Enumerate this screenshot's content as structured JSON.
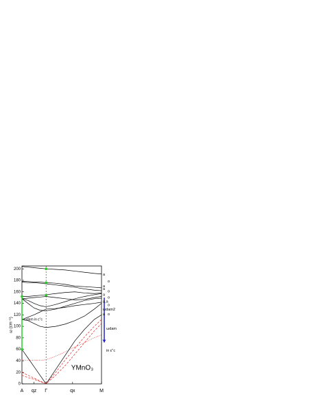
{
  "chart_data": {
    "type": "line",
    "title": "YMnO₃",
    "ylabel": "ω (cm⁻¹)",
    "ylim": [
      0,
      205
    ],
    "yticks": [
      0,
      20,
      40,
      60,
      80,
      100,
      120,
      140,
      160,
      180,
      200
    ],
    "xlim": [
      0,
      3.3
    ],
    "xticks": [
      {
        "value": 0,
        "label": "A"
      },
      {
        "value": 0.5,
        "label": "qz"
      },
      {
        "value": 1,
        "label": "Γ"
      },
      {
        "value": 2.1,
        "label": "qx"
      },
      {
        "value": 3.3,
        "label": "M"
      }
    ],
    "x": [
      0,
      0.25,
      0.5,
      0.75,
      1,
      1.4,
      1.8,
      2.2,
      2.6,
      3.0,
      3.3
    ],
    "series": [
      {
        "color": "#000000",
        "dash": "solid",
        "values": [
          204,
          203,
          202,
          201,
          200,
          199,
          198,
          196,
          194,
          192,
          191
        ]
      },
      {
        "color": "#000000",
        "dash": "solid",
        "values": [
          178,
          178,
          177,
          177,
          176,
          175,
          173,
          170,
          169,
          168,
          167
        ]
      },
      {
        "color": "#000000",
        "dash": "solid",
        "values": [
          177,
          176,
          176,
          175,
          174,
          172,
          170,
          168,
          165,
          163,
          162
        ]
      },
      {
        "color": "#000000",
        "dash": "solid",
        "values": [
          152,
          152,
          153,
          154,
          155,
          157,
          159,
          160,
          158,
          157,
          158
        ]
      },
      {
        "color": "#000000",
        "dash": "solid",
        "values": [
          148,
          149,
          150,
          151,
          152,
          150,
          148,
          146,
          147,
          150,
          152
        ]
      },
      {
        "color": "#000000",
        "dash": "solid",
        "values": [
          148,
          140,
          132,
          128,
          127,
          130,
          135,
          140,
          145,
          148,
          149
        ]
      },
      {
        "color": "#000000",
        "dash": "solid",
        "values": [
          112,
          110,
          105,
          100,
          98,
          100,
          104,
          110,
          118,
          130,
          140
        ]
      },
      {
        "color": "#000000",
        "dash": "solid",
        "values": [
          60,
          45,
          30,
          15,
          0,
          25,
          50,
          75,
          95,
          112,
          120
        ]
      },
      {
        "color": "#000000",
        "dash": "solid",
        "values": [
          112,
          116,
          120,
          125,
          130,
          131,
          133,
          136,
          138,
          140,
          142
        ]
      },
      {
        "color": "#000000",
        "dash": "solid",
        "values": [
          148,
          145,
          140,
          136,
          134,
          138,
          143,
          148,
          152,
          155,
          157
        ]
      },
      {
        "color": "#e02020",
        "dash": "dashed",
        "values": [
          20,
          15,
          10,
          5,
          0,
          20,
          42,
          62,
          82,
          100,
          112
        ]
      },
      {
        "color": "#e02020",
        "dash": "dashed",
        "values": [
          15,
          11,
          8,
          4,
          0,
          15,
          32,
          52,
          72,
          92,
          105
        ]
      },
      {
        "color": "#e02020",
        "dash": "dotted",
        "values": [
          42,
          41,
          41,
          41,
          42,
          48,
          56,
          64,
          72,
          80,
          85
        ]
      }
    ],
    "green_bar": {
      "x": 0,
      "from": 60,
      "to": 152,
      "color": "#22cc22"
    },
    "green_points": {
      "x": 1,
      "values": [
        200,
        176,
        154
      ],
      "color": "#22cc22"
    },
    "green_label": {
      "text": "ωdam in ε''c",
      "value": 112
    },
    "blue_arrow": {
      "from": 150,
      "to": 72,
      "color": "#2020d0"
    },
    "blue_labels": [
      {
        "text": "ωdam",
        "value": 96
      },
      {
        "text": "in ε''c",
        "value": 58
      }
    ],
    "right_labels": [
      {
        "text": "a",
        "value": 190,
        "color": "#8030a0"
      },
      {
        "text": "o",
        "value": 178,
        "color": "#e08020"
      },
      {
        "text": "a",
        "value": 170,
        "color": "#8030a0"
      },
      {
        "text": "a",
        "value": 165,
        "color": "#8030a0"
      },
      {
        "text": "o",
        "value": 161,
        "color": "#e08020"
      },
      {
        "text": "a",
        "value": 155,
        "color": "#8030a0"
      },
      {
        "text": "o",
        "value": 150,
        "color": "#e08020"
      },
      {
        "text": "a,a",
        "value": 143,
        "color": "#8030a0"
      },
      {
        "text": "o",
        "value": 137,
        "color": "#e08020"
      },
      {
        "text": "ωdam2",
        "value": 129,
        "color": "#2020d0"
      },
      {
        "text": "a",
        "value": 121,
        "color": "#8030a0"
      },
      {
        "text": "o",
        "value": 121,
        "color": "#e08020"
      }
    ]
  }
}
